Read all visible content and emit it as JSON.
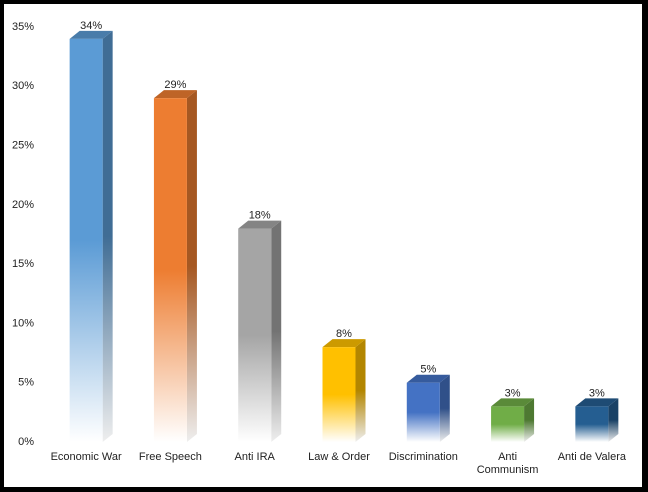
{
  "chart_data": {
    "type": "bar3d",
    "categories": [
      "Economic War",
      "Free Speech",
      "Anti IRA",
      "Law & Order",
      "Discrimination",
      "Anti\nCommunism",
      "Anti de Valera"
    ],
    "values": [
      34,
      29,
      18,
      8,
      5,
      3,
      3
    ],
    "value_labels": [
      "34%",
      "29%",
      "18%",
      "8%",
      "5%",
      "3%",
      "3%"
    ],
    "colors": [
      "#5b9bd5",
      "#ed7d31",
      "#a5a5a5",
      "#ffc000",
      "#4472c4",
      "#70ad47",
      "#255e91"
    ],
    "ylim": [
      0,
      35
    ],
    "yticks": [
      {
        "value": 0,
        "label": "0%"
      },
      {
        "value": 5,
        "label": "5%"
      },
      {
        "value": 10,
        "label": "10%"
      },
      {
        "value": 15,
        "label": "15%"
      },
      {
        "value": 20,
        "label": "20%"
      },
      {
        "value": 25,
        "label": "25%"
      },
      {
        "value": 30,
        "label": "30%"
      },
      {
        "value": 35,
        "label": "35%"
      }
    ]
  }
}
